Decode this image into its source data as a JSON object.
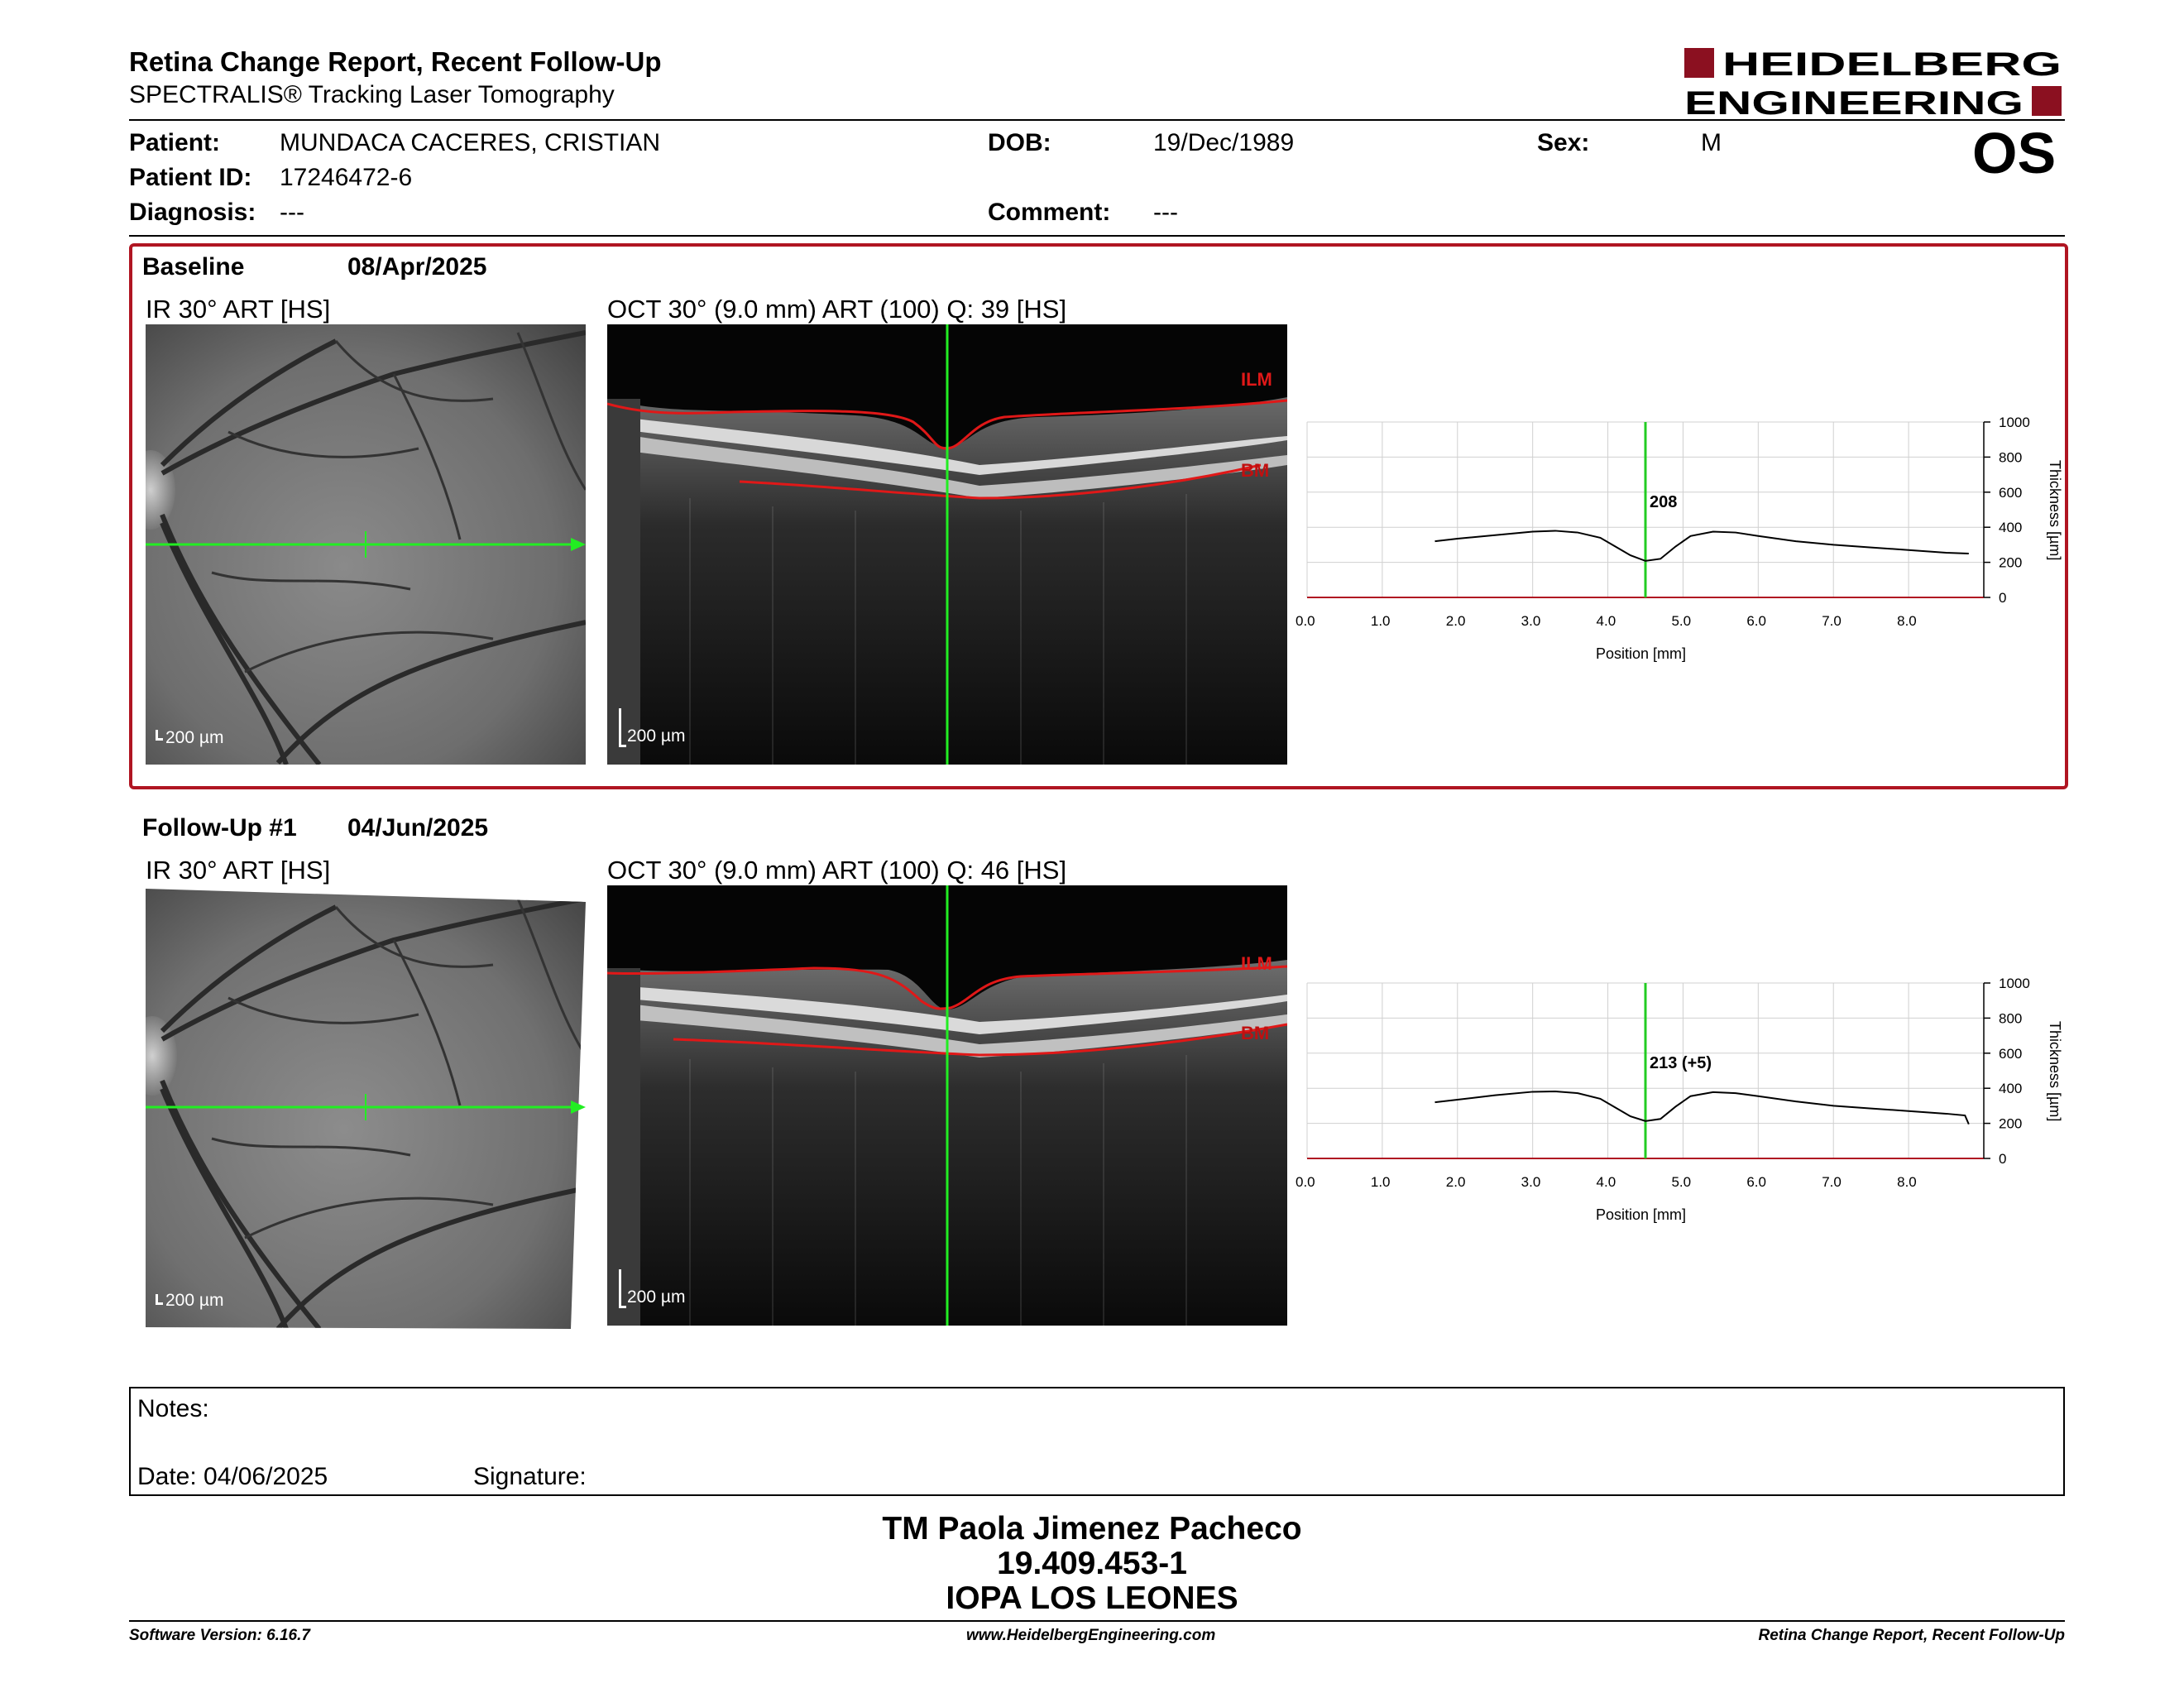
{
  "header": {
    "title": "Retina Change Report, Recent Follow-Up",
    "subtitle": "SPECTRALIS® Tracking Laser Tomography",
    "logo_line1": "HEIDELBERG",
    "logo_line2": "ENGINEERING",
    "eye": "OS",
    "brand_color": "#8b1020"
  },
  "patient": {
    "patient_label": "Patient:",
    "patient_value": "MUNDACA CACERES, CRISTIAN",
    "id_label": "Patient ID:",
    "id_value": "17246472-6",
    "diagnosis_label": "Diagnosis:",
    "diagnosis_value": "---",
    "dob_label": "DOB:",
    "dob_value": "19/Dec/1989",
    "comment_label": "Comment:",
    "comment_value": "---",
    "sex_label": "Sex:",
    "sex_value": "M"
  },
  "baseline": {
    "label": "Baseline",
    "date": "08/Apr/2025",
    "ir_title": "IR 30° ART [HS]",
    "oct_title": "OCT 30° (9.0 mm) ART (100) Q: 39 [HS]",
    "scale": "200 µm",
    "ilm": "ILM",
    "bm": "BM",
    "value_label": "208",
    "frame_color": "#b01522"
  },
  "followup": {
    "label": "Follow-Up #1",
    "date": "04/Jun/2025",
    "ir_title": "IR 30° ART [HS]",
    "oct_title": "OCT 30° (9.0 mm) ART (100) Q: 46 [HS]",
    "scale": "200 µm",
    "ilm": "ILM",
    "bm": "BM",
    "value_label": "213 (+5)"
  },
  "chart_data": [
    {
      "type": "line",
      "xlabel": "Position [mm]",
      "ylabel": "Thickness [µm]",
      "xlim": [
        0,
        9
      ],
      "ylim": [
        0,
        1000
      ],
      "x_ticks": [
        "0.0",
        "1.0",
        "2.0",
        "3.0",
        "4.0",
        "5.0",
        "6.0",
        "7.0",
        "8.0"
      ],
      "y_ticks": [
        "0",
        "200",
        "400",
        "600",
        "800",
        "1000"
      ],
      "grid": true,
      "marker_x": 4.5,
      "marker_label": "208",
      "series": [
        {
          "x": [
            1.7,
            2.0,
            2.5,
            3.0,
            3.3,
            3.6,
            3.9,
            4.1,
            4.3,
            4.5,
            4.7,
            4.9,
            5.1,
            5.4,
            5.7,
            6.0,
            6.5,
            7.0,
            7.5,
            8.0,
            8.5,
            8.8
          ],
          "values": [
            320,
            335,
            355,
            375,
            380,
            370,
            340,
            290,
            240,
            208,
            220,
            290,
            350,
            375,
            370,
            350,
            320,
            300,
            285,
            270,
            255,
            250
          ]
        }
      ],
      "line_color": "#000000",
      "marker_color": "#22cc22"
    },
    {
      "type": "line",
      "xlabel": "Position [mm]",
      "ylabel": "Thickness [µm]",
      "xlim": [
        0,
        9
      ],
      "ylim": [
        0,
        1000
      ],
      "x_ticks": [
        "0.0",
        "1.0",
        "2.0",
        "3.0",
        "4.0",
        "5.0",
        "6.0",
        "7.0",
        "8.0"
      ],
      "y_ticks": [
        "0",
        "200",
        "400",
        "600",
        "800",
        "1000"
      ],
      "grid": true,
      "marker_x": 4.5,
      "marker_label": "213 (+5)",
      "series": [
        {
          "x": [
            1.7,
            2.0,
            2.5,
            3.0,
            3.3,
            3.6,
            3.9,
            4.1,
            4.3,
            4.5,
            4.7,
            4.9,
            5.1,
            5.4,
            5.7,
            6.0,
            6.5,
            7.0,
            7.5,
            8.0,
            8.5,
            8.75,
            8.8
          ],
          "values": [
            320,
            335,
            360,
            380,
            382,
            372,
            340,
            290,
            240,
            213,
            225,
            295,
            355,
            378,
            372,
            355,
            325,
            300,
            285,
            270,
            255,
            245,
            195
          ]
        }
      ],
      "line_color": "#000000",
      "marker_color": "#22cc22"
    }
  ],
  "notes": {
    "notes_label": "Notes:",
    "date_label": "Date: 04/06/2025",
    "signature_label": "Signature:"
  },
  "signature_block": {
    "name": "TM Paola Jimenez Pacheco",
    "rut": "19.409.453-1",
    "institution": "IOPA LOS LEONES"
  },
  "footer": {
    "left": "Software Version: 6.16.7",
    "center": "www.HeidelbergEngineering.com",
    "right": "Retina Change Report, Recent Follow-Up"
  }
}
